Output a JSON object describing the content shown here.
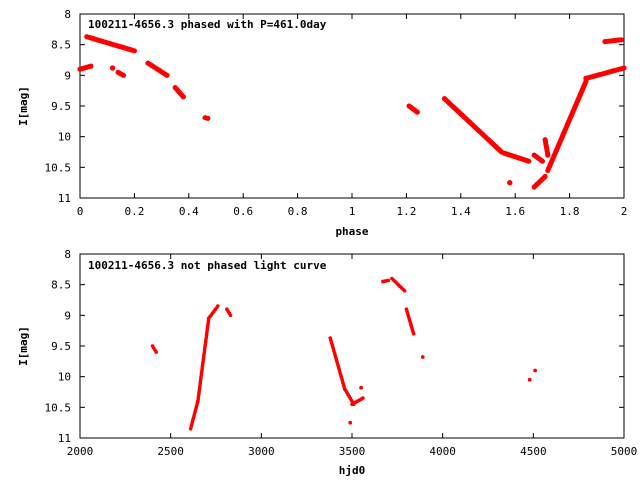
{
  "colors": {
    "points": "#ff0000",
    "axes": "#000000",
    "background": "#ffffff"
  },
  "chart_data": [
    {
      "type": "scatter",
      "title": "100211-4656.3 phased with P=461.0day",
      "xlabel": "phase",
      "ylabel": "I[mag]",
      "xlim": [
        0,
        2
      ],
      "ylim": [
        8,
        11
      ],
      "y_inverted": true,
      "grid": false,
      "legend": "none",
      "x_ticks": [
        0,
        0.2,
        0.4,
        0.6,
        0.8,
        1,
        1.2,
        1.4,
        1.6,
        1.8,
        2
      ],
      "x_tick_labels": [
        "0",
        "0.2",
        "0.4",
        "0.6",
        "0.8",
        "1",
        "1.2",
        "1.4",
        "1.6",
        "1.8",
        "2"
      ],
      "y_ticks": [
        8,
        8.5,
        9,
        9.5,
        10,
        10.5,
        11
      ],
      "y_tick_labels": [
        "8",
        "8.5",
        "9",
        "9.5",
        "10",
        "10.5",
        "11"
      ],
      "segments": [
        {
          "x": [
            0.0,
            0.04
          ],
          "y": [
            8.9,
            8.85
          ]
        },
        {
          "x": [
            0.025,
            0.2
          ],
          "y": [
            8.37,
            8.6
          ]
        },
        {
          "x": [
            0.12,
            0.12
          ],
          "y": [
            8.88,
            8.88
          ]
        },
        {
          "x": [
            0.14,
            0.16
          ],
          "y": [
            8.95,
            9.0
          ]
        },
        {
          "x": [
            0.25,
            0.32
          ],
          "y": [
            8.8,
            9.0
          ]
        },
        {
          "x": [
            0.35,
            0.38
          ],
          "y": [
            9.2,
            9.35
          ]
        },
        {
          "x": [
            0.46,
            0.47
          ],
          "y": [
            9.69,
            9.7
          ]
        },
        {
          "x": [
            1.21,
            1.24
          ],
          "y": [
            9.5,
            9.6
          ]
        },
        {
          "x": [
            1.34,
            1.55
          ],
          "y": [
            9.38,
            10.25
          ]
        },
        {
          "x": [
            1.56,
            1.65
          ],
          "y": [
            10.27,
            10.4
          ]
        },
        {
          "x": [
            1.58,
            1.58
          ],
          "y": [
            10.75,
            10.75
          ]
        },
        {
          "x": [
            1.67,
            1.7
          ],
          "y": [
            10.3,
            10.4
          ]
        },
        {
          "x": [
            1.67,
            1.71
          ],
          "y": [
            10.82,
            10.65
          ]
        },
        {
          "x": [
            1.71,
            1.72
          ],
          "y": [
            10.05,
            10.3
          ]
        },
        {
          "x": [
            1.72,
            1.86
          ],
          "y": [
            10.55,
            9.1
          ]
        },
        {
          "x": [
            1.86,
            2.0
          ],
          "y": [
            9.05,
            8.88
          ]
        },
        {
          "x": [
            1.93,
            1.99
          ],
          "y": [
            8.45,
            8.42
          ]
        }
      ]
    },
    {
      "type": "scatter",
      "title": "100211-4656.3 not phased light curve",
      "xlabel": "hjd0",
      "ylabel": "I[mag]",
      "xlim": [
        2000,
        5000
      ],
      "ylim": [
        8,
        11
      ],
      "y_inverted": true,
      "grid": false,
      "legend": "none",
      "x_ticks": [
        2000,
        2500,
        3000,
        3500,
        4000,
        4500,
        5000
      ],
      "x_tick_labels": [
        "2000",
        "2500",
        "3000",
        "3500",
        "4000",
        "4500",
        "5000"
      ],
      "y_ticks": [
        8,
        8.5,
        9,
        9.5,
        10,
        10.5,
        11
      ],
      "y_tick_labels": [
        "8",
        "8.5",
        "9",
        "9.5",
        "10",
        "10.5",
        "11"
      ],
      "segments": [
        {
          "x": [
            2400,
            2420
          ],
          "y": [
            9.5,
            9.6
          ]
        },
        {
          "x": [
            2610,
            2650
          ],
          "y": [
            10.85,
            10.4
          ]
        },
        {
          "x": [
            2650,
            2710
          ],
          "y": [
            10.4,
            9.05
          ]
        },
        {
          "x": [
            2710,
            2760
          ],
          "y": [
            9.05,
            8.85
          ]
        },
        {
          "x": [
            2810,
            2830
          ],
          "y": [
            8.9,
            9.0
          ]
        },
        {
          "x": [
            3380,
            3460
          ],
          "y": [
            9.37,
            10.2
          ]
        },
        {
          "x": [
            3460,
            3510
          ],
          "y": [
            10.2,
            10.45
          ]
        },
        {
          "x": [
            3500,
            3560
          ],
          "y": [
            10.45,
            10.35
          ]
        },
        {
          "x": [
            3550,
            3550
          ],
          "y": [
            10.18,
            10.18
          ]
        },
        {
          "x": [
            3490,
            3490
          ],
          "y": [
            10.75,
            10.75
          ]
        },
        {
          "x": [
            3670,
            3700
          ],
          "y": [
            8.45,
            8.43
          ]
        },
        {
          "x": [
            3720,
            3790
          ],
          "y": [
            8.4,
            8.6
          ]
        },
        {
          "x": [
            3800,
            3840
          ],
          "y": [
            8.9,
            9.3
          ]
        },
        {
          "x": [
            3890,
            3890
          ],
          "y": [
            9.68,
            9.68
          ]
        },
        {
          "x": [
            4480,
            4480
          ],
          "y": [
            10.05,
            10.05
          ]
        },
        {
          "x": [
            4510,
            4510
          ],
          "y": [
            9.9,
            9.9
          ]
        }
      ]
    }
  ]
}
